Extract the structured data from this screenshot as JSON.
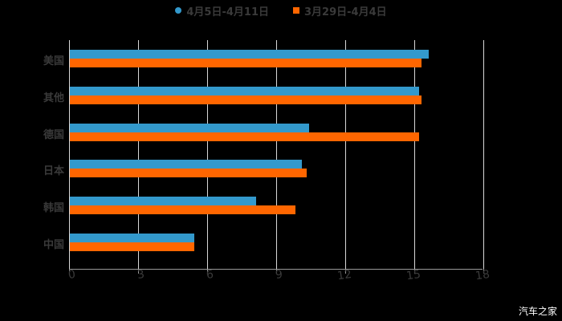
{
  "legend": [
    {
      "label": "4月5日-4月11日",
      "color": "#3399cc",
      "shape": "circle"
    },
    {
      "label": "3月29日-4月4日",
      "color": "#ff6600",
      "shape": "square"
    }
  ],
  "watermark": "汽车之家",
  "chart_data": {
    "type": "bar",
    "orientation": "horizontal",
    "title": "",
    "xlabel": "",
    "ylabel": "",
    "xlim": [
      0,
      18
    ],
    "x_ticks": [
      0,
      3,
      6,
      9,
      12,
      15,
      18
    ],
    "grid": true,
    "legend_position": "top",
    "categories": [
      "美国",
      "其他",
      "德国",
      "日本",
      "韩国",
      "中国"
    ],
    "series": [
      {
        "name": "4月5日-4月11日",
        "color": "#3399cc",
        "values": [
          15.6,
          15.2,
          10.4,
          10.1,
          8.1,
          5.4
        ]
      },
      {
        "name": "3月29日-4月4日",
        "color": "#ff6600",
        "values": [
          15.3,
          15.3,
          15.2,
          10.3,
          9.8,
          5.4
        ]
      }
    ]
  }
}
